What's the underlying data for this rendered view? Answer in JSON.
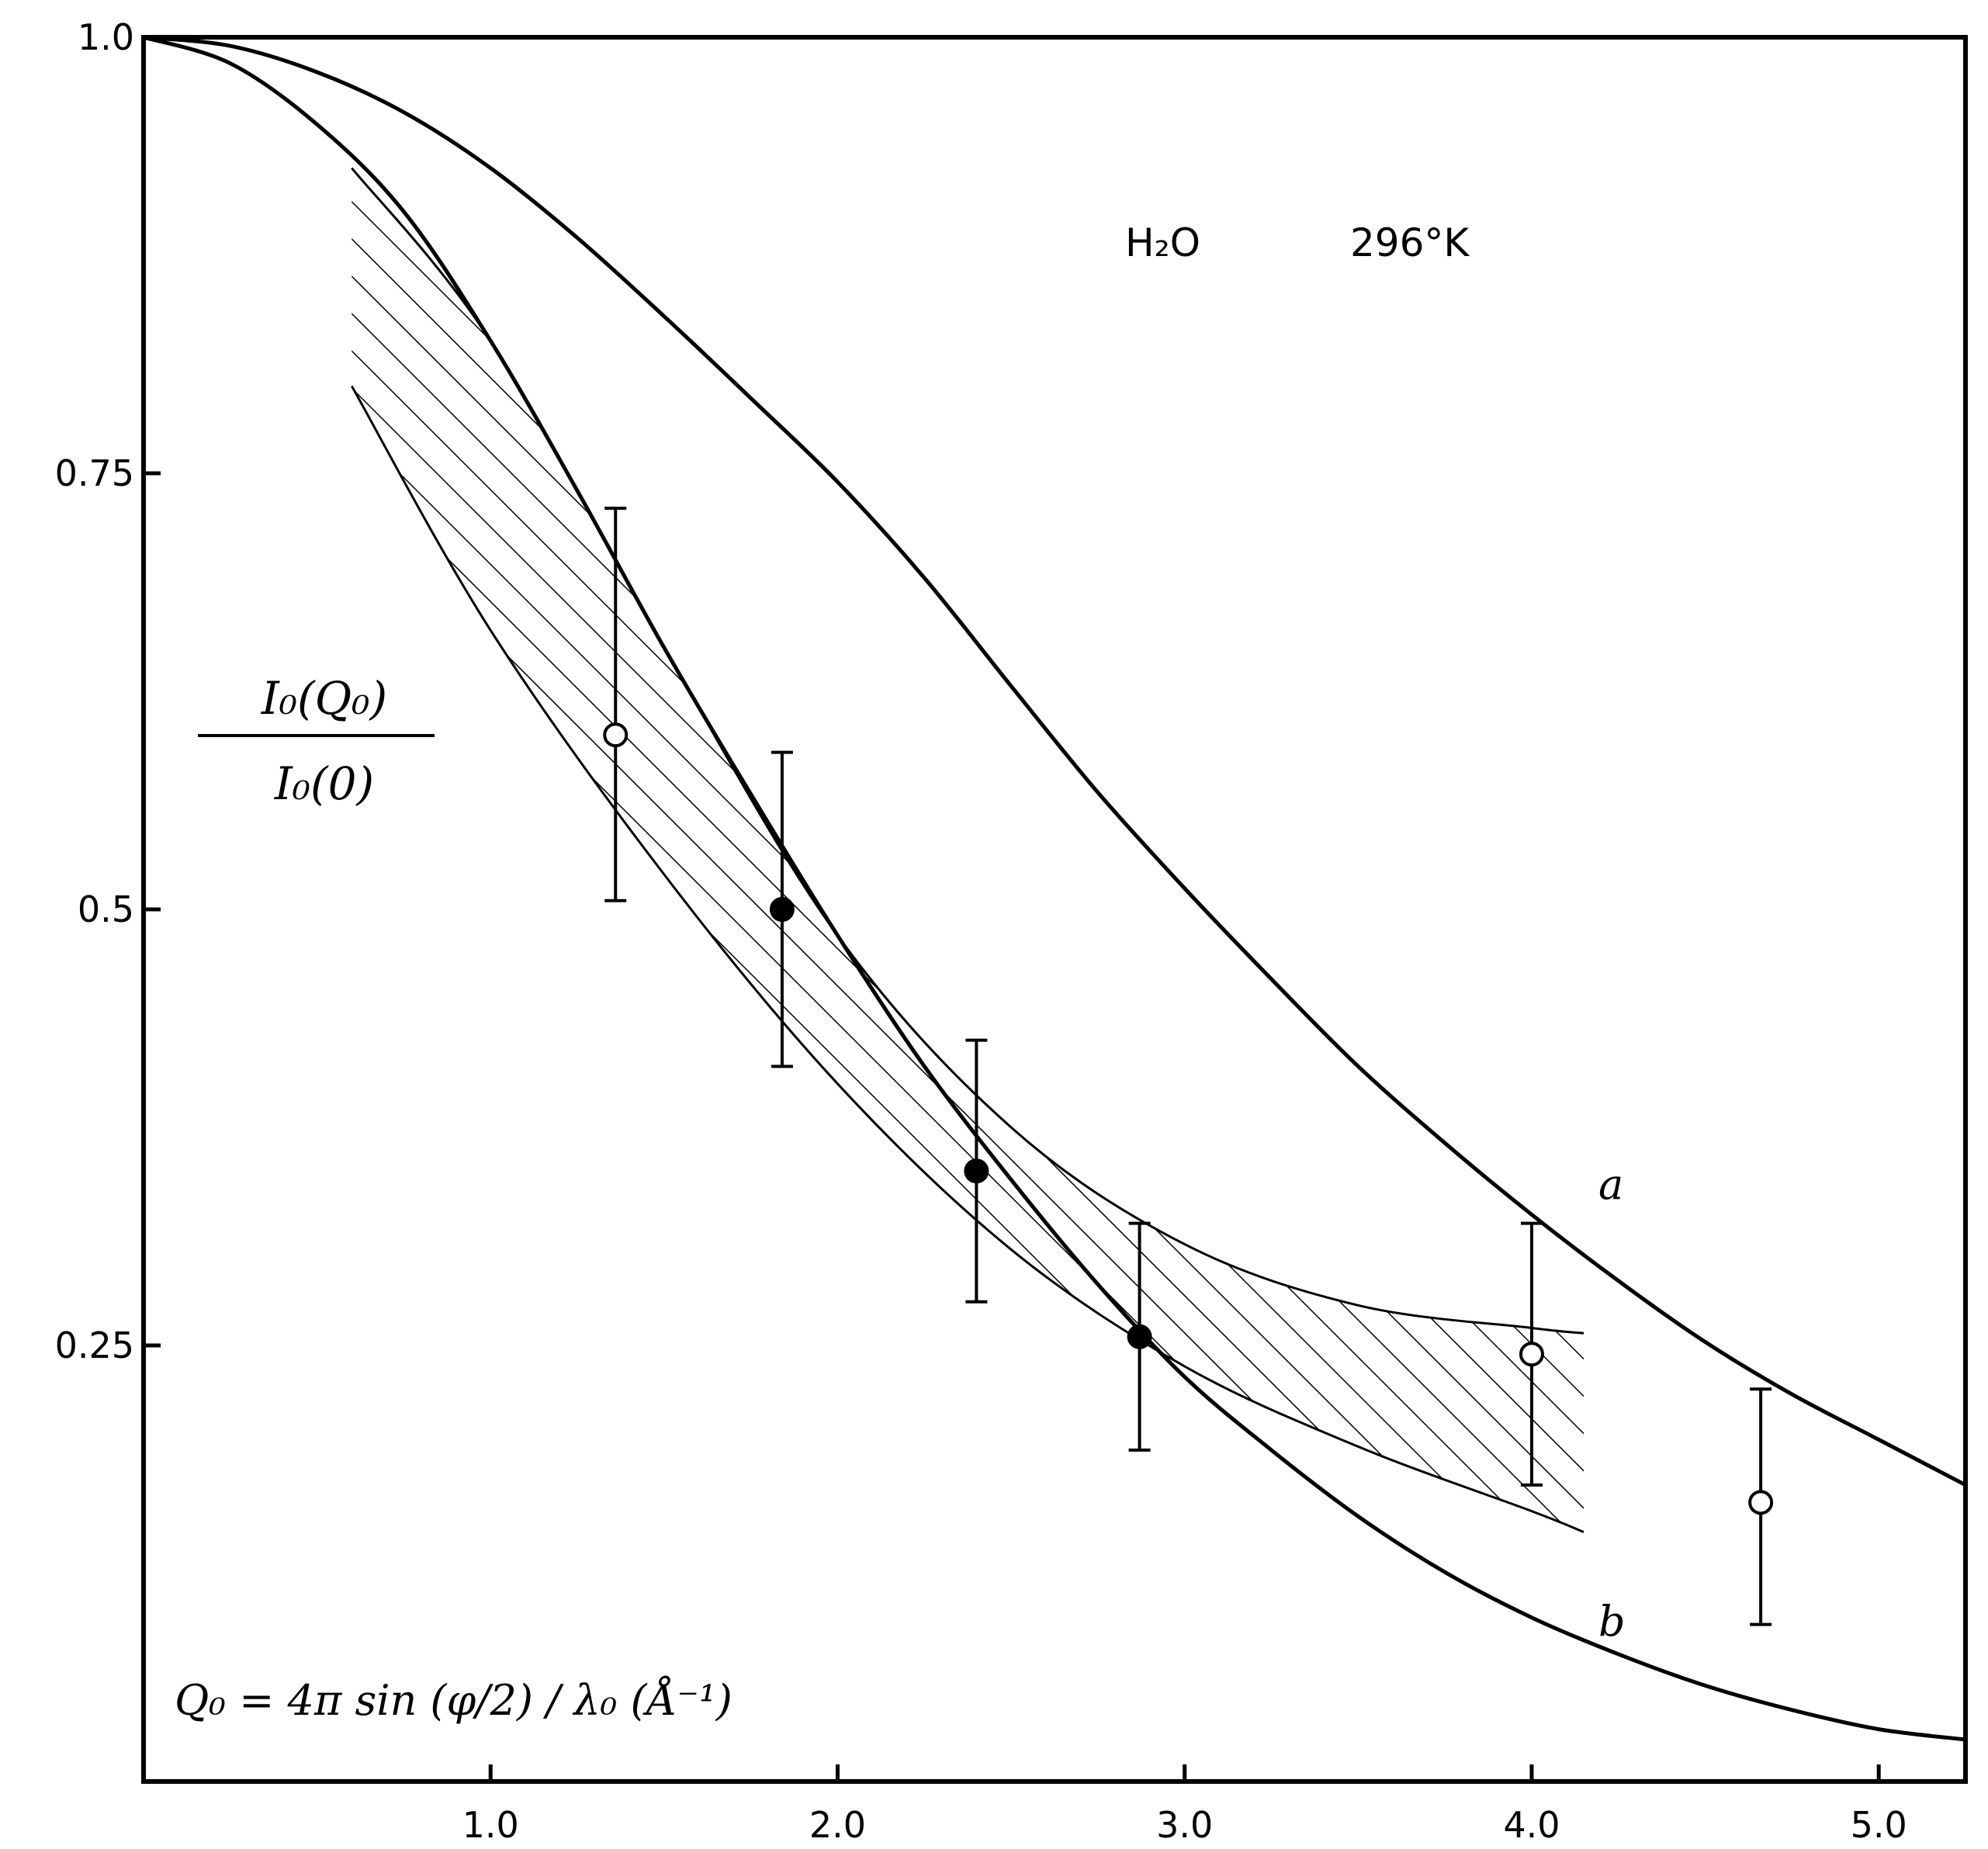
{
  "chart_data": {
    "type": "line",
    "title": "H₂O   296°K",
    "title_parts": {
      "substance": "H₂O",
      "temperature": "296°K"
    },
    "ylabel": {
      "numerator": "I₀(Q₀)",
      "denominator": "I₀(0)"
    },
    "xlabel": "Q₀ = 4π sin (φ/2) / λ₀ (Å⁻¹)",
    "xlim": [
      0.0,
      5.25
    ],
    "ylim": [
      0.0,
      1.0
    ],
    "x_ticks": [
      1.0,
      2.0,
      3.0,
      4.0,
      5.0
    ],
    "x_tick_labels": [
      "1.0",
      "2.0",
      "3.0",
      "4.0",
      "5.0"
    ],
    "y_ticks": [
      0.25,
      0.5,
      0.75,
      1.0
    ],
    "y_tick_labels": [
      "0.25",
      "0.5",
      "0.75",
      "1.0"
    ],
    "grid": false,
    "series": [
      {
        "name": "a",
        "style": "solid",
        "x": [
          0.0,
          0.25,
          0.5,
          0.75,
          1.0,
          1.25,
          1.5,
          1.75,
          2.0,
          2.25,
          2.5,
          2.75,
          3.0,
          3.25,
          3.5,
          3.75,
          4.0,
          4.25,
          4.5,
          4.75,
          5.0,
          5.25
        ],
        "y": [
          1.0,
          0.995,
          0.98,
          0.957,
          0.925,
          0.885,
          0.84,
          0.793,
          0.745,
          0.69,
          0.628,
          0.567,
          0.512,
          0.46,
          0.41,
          0.366,
          0.325,
          0.287,
          0.252,
          0.222,
          0.196,
          0.17
        ]
      },
      {
        "name": "b",
        "style": "solid",
        "x": [
          0.0,
          0.25,
          0.5,
          0.75,
          1.0,
          1.25,
          1.5,
          1.75,
          2.0,
          2.25,
          2.5,
          2.75,
          3.0,
          3.25,
          3.5,
          3.75,
          4.0,
          4.25,
          4.5,
          4.75,
          5.0,
          5.25
        ],
        "y": [
          1.0,
          0.985,
          0.95,
          0.9,
          0.826,
          0.74,
          0.65,
          0.566,
          0.485,
          0.41,
          0.345,
          0.285,
          0.232,
          0.19,
          0.152,
          0.12,
          0.094,
          0.073,
          0.055,
          0.041,
          0.03,
          0.024
        ]
      }
    ],
    "band": {
      "name": "hatched region",
      "x": [
        0.6,
        1.0,
        1.5,
        2.0,
        2.5,
        3.0,
        3.5,
        4.0,
        4.15
      ],
      "upper": [
        0.925,
        0.826,
        0.65,
        0.485,
        0.375,
        0.308,
        0.273,
        0.26,
        0.257
      ],
      "lower": [
        0.8,
        0.66,
        0.52,
        0.4,
        0.305,
        0.238,
        0.192,
        0.155,
        0.143
      ]
    },
    "points": [
      {
        "x": 1.36,
        "y": 0.6,
        "yerr_low": 0.505,
        "yerr_high": 0.73,
        "marker": "open"
      },
      {
        "x": 1.84,
        "y": 0.5,
        "yerr_low": 0.41,
        "yerr_high": 0.59,
        "marker": "filled"
      },
      {
        "x": 2.4,
        "y": 0.35,
        "yerr_low": 0.275,
        "yerr_high": 0.425,
        "marker": "filled"
      },
      {
        "x": 2.87,
        "y": 0.255,
        "yerr_low": 0.19,
        "yerr_high": 0.32,
        "marker": "filled"
      },
      {
        "x": 4.0,
        "y": 0.245,
        "yerr_low": 0.17,
        "yerr_high": 0.32,
        "marker": "open"
      },
      {
        "x": 4.66,
        "y": 0.16,
        "yerr_low": 0.09,
        "yerr_high": 0.225,
        "marker": "open"
      }
    ],
    "annotations": [
      {
        "text": "a",
        "x": 4.22,
        "y": 0.335
      },
      {
        "text": "b",
        "x": 4.22,
        "y": 0.085
      }
    ]
  }
}
